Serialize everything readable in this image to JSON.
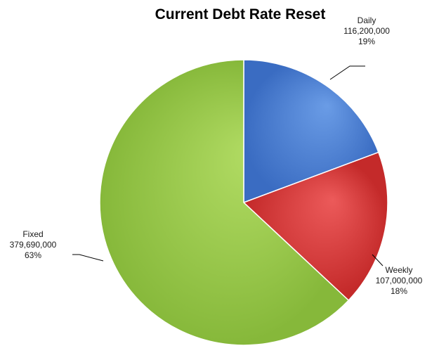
{
  "chart_data": {
    "type": "pie",
    "title": "Current Debt Rate Reset",
    "slices": [
      {
        "name": "Daily",
        "value": 116200000,
        "value_label": "116,200,000",
        "percent_label": "19%",
        "color": "#4a7fd4"
      },
      {
        "name": "Weekly",
        "value": 107000000,
        "value_label": "107,000,000",
        "percent_label": "18%",
        "color": "#d83c3c"
      },
      {
        "name": "Fixed",
        "value": 379690000,
        "value_label": "379,690,000",
        "percent_label": "63%",
        "color": "#9cc94a"
      }
    ],
    "start_angle": "12 o'clock",
    "direction": "clockwise",
    "legend": "none",
    "data_labels": "outside with leader lines"
  }
}
